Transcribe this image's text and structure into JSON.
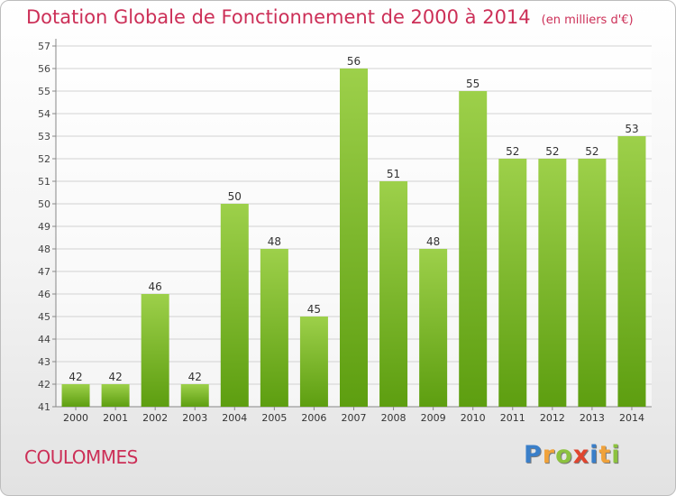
{
  "title": "Dotation Globale de Fonctionnement de 2000 à 2014",
  "unit": "(en milliers d'€)",
  "city": "COULOMMES",
  "brand": {
    "text": "Proxiti",
    "letters": [
      {
        "char": "P",
        "color": "#3a7fc9"
      },
      {
        "char": "r",
        "color": "#f0a23a"
      },
      {
        "char": "o",
        "color": "#8cc23f"
      },
      {
        "char": "x",
        "color": "#e0452f"
      },
      {
        "char": "i",
        "color": "#3a7fc9"
      },
      {
        "char": "t",
        "color": "#f0a23a"
      },
      {
        "char": "i",
        "color": "#8cc23f"
      }
    ]
  },
  "colors": {
    "bar_light": "#9dd04a",
    "bar_dark": "#5d9e10",
    "title": "#cc2f57",
    "grid": "#d2d2d2"
  },
  "chart_data": {
    "type": "bar",
    "title": "Dotation Globale de Fonctionnement de 2000 à 2014",
    "categories": [
      "2000",
      "2001",
      "2002",
      "2003",
      "2004",
      "2005",
      "2006",
      "2007",
      "2008",
      "2009",
      "2010",
      "2011",
      "2012",
      "2013",
      "2014"
    ],
    "values": [
      42,
      42,
      46,
      42,
      50,
      48,
      45,
      56,
      51,
      48,
      55,
      52,
      52,
      52,
      53
    ],
    "ylim": [
      41,
      57
    ],
    "yticks": [
      41,
      42,
      43,
      44,
      45,
      46,
      47,
      48,
      49,
      50,
      51,
      52,
      53,
      54,
      55,
      56,
      57
    ],
    "grid": true,
    "legend": "none"
  }
}
